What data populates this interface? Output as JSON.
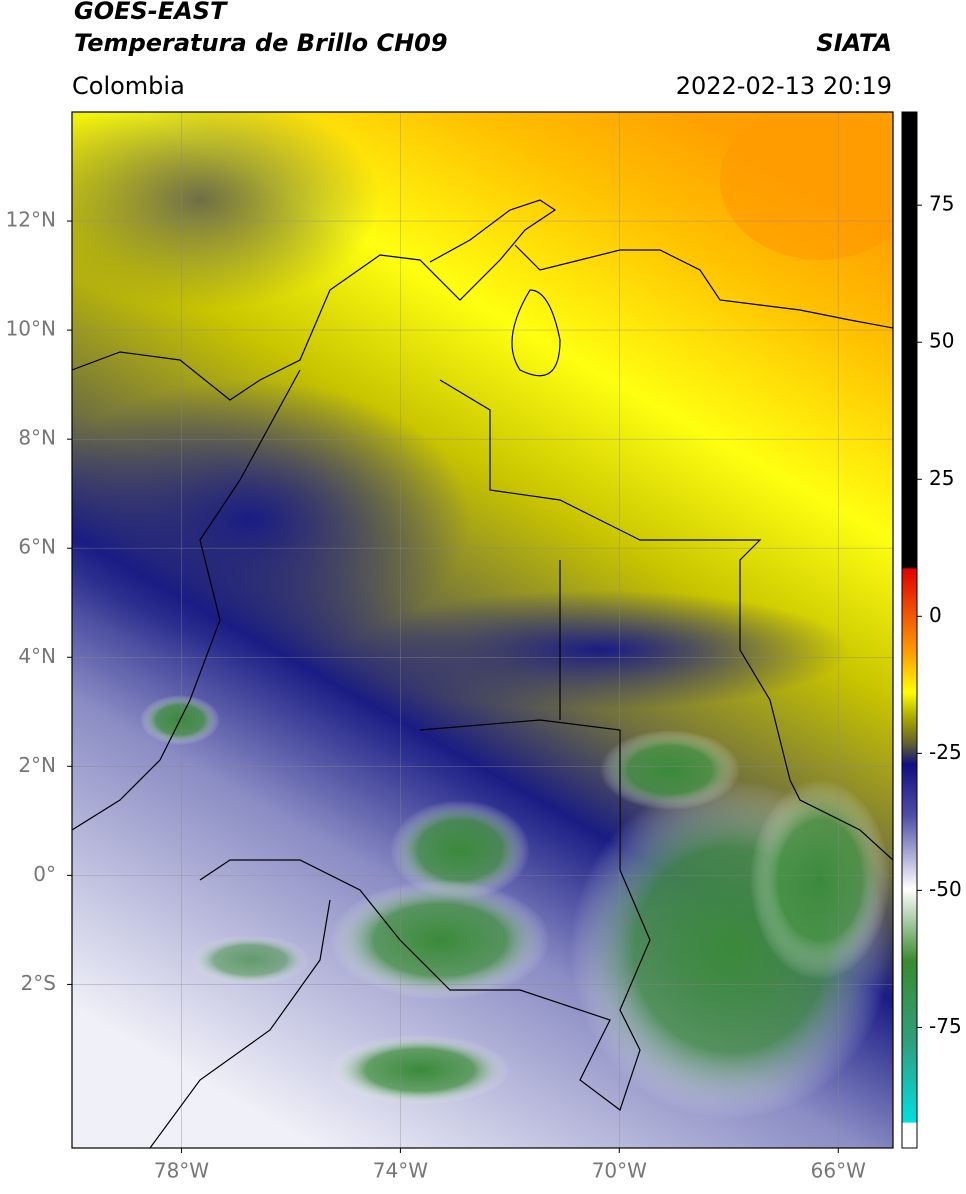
{
  "header": {
    "title": "GOES-EAST",
    "subtitle": "Temperatura de Brillo CH09",
    "region": "Colombia",
    "source": "SIATA",
    "datetime": "2022-02-13 20:19"
  },
  "map": {
    "latlim": [
      -5,
      14
    ],
    "lonlim": [
      -80,
      -65
    ],
    "lat_ticks": [
      {
        "value": 12,
        "label": "12°N"
      },
      {
        "value": 10,
        "label": "10°N"
      },
      {
        "value": 8,
        "label": "8°N"
      },
      {
        "value": 6,
        "label": "6°N"
      },
      {
        "value": 4,
        "label": "4°N"
      },
      {
        "value": 2,
        "label": "2°N"
      },
      {
        "value": 0,
        "label": "0°"
      },
      {
        "value": -2,
        "label": "2°S"
      }
    ],
    "lon_ticks": [
      {
        "value": -78,
        "label": "78°W"
      },
      {
        "value": -74,
        "label": "74°W"
      },
      {
        "value": -70,
        "label": "70°W"
      },
      {
        "value": -66,
        "label": "66°W"
      }
    ]
  },
  "colorbar": {
    "lim": [
      -97,
      92
    ],
    "ticks": [
      75,
      50,
      25,
      0,
      -25,
      -50,
      -75
    ]
  }
}
